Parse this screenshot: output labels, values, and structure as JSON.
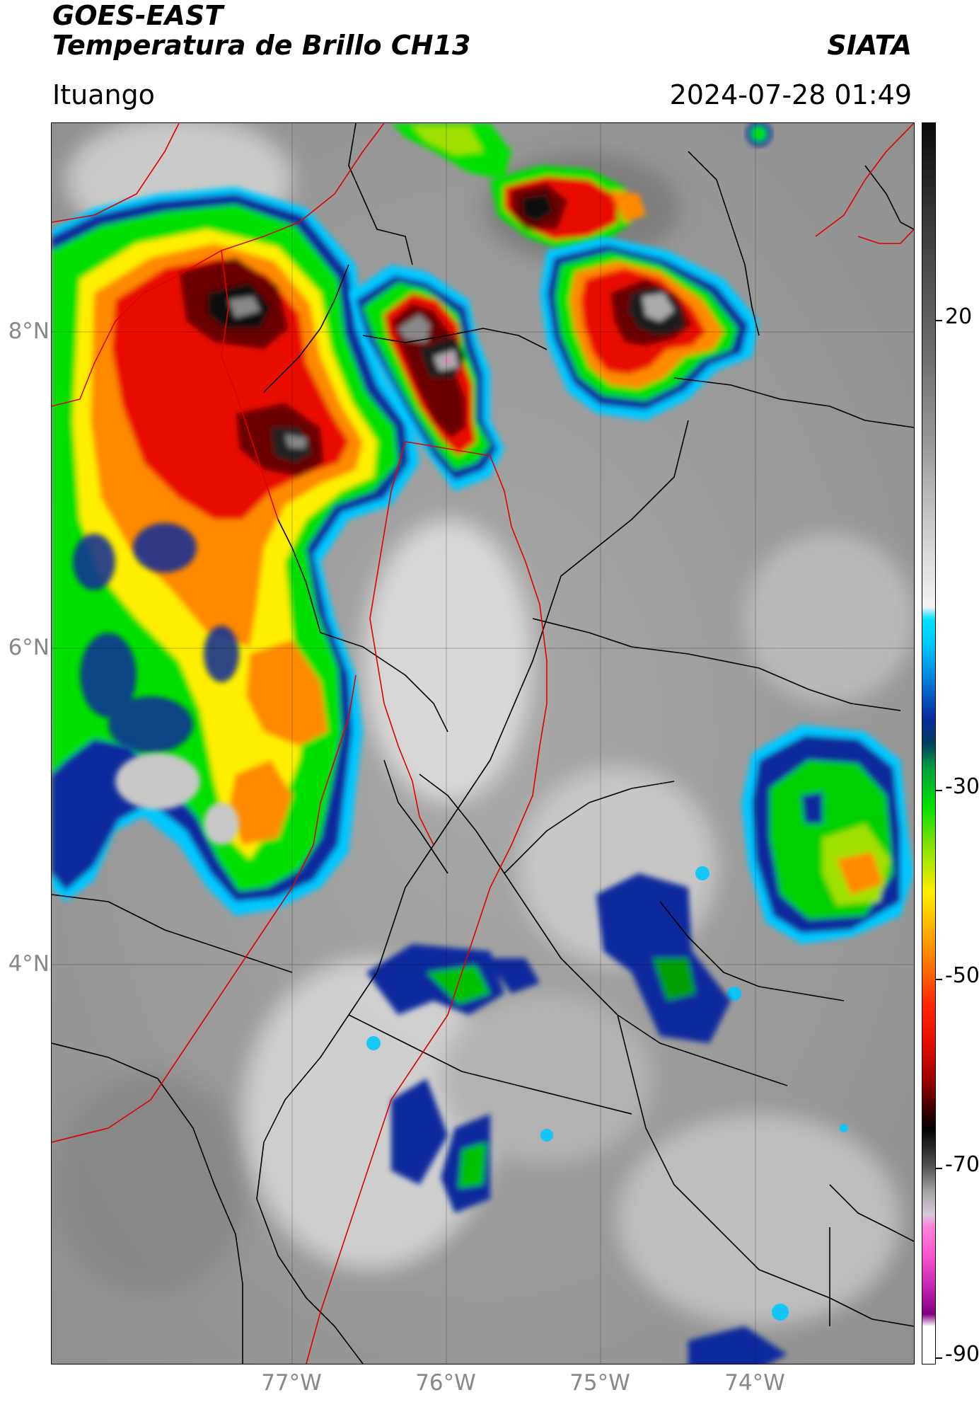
{
  "header": {
    "satellite": "GOES-EAST",
    "product": "Temperatura de Brillo CH13",
    "organization": "SIATA",
    "location": "Ituango",
    "timestamp": "2024-07-28 01:49"
  },
  "axes": {
    "lat_labels": [
      "8°N",
      "6°N",
      "4°N"
    ],
    "lon_labels": [
      "77°W",
      "76°W",
      "75°W",
      "74°W"
    ]
  },
  "colorbar": {
    "labels": [
      "20",
      "-30",
      "-50",
      "-70",
      "-90"
    ],
    "colors": {
      "warm_gray_light": "#ffffff",
      "warm_gray_dark": "#4a4a4a",
      "cyan": "#00c8ff",
      "blue": "#0a2a9c",
      "green": "#00e000",
      "yellow": "#ffee00",
      "orange": "#ff8a00",
      "red": "#e81000",
      "dark_red": "#6b0000",
      "black": "#000000",
      "pink": "#ff5ad0",
      "magenta": "#9b0a9b"
    }
  },
  "map": {
    "border_color_political": "#000000",
    "border_color_department": "#e00000"
  }
}
